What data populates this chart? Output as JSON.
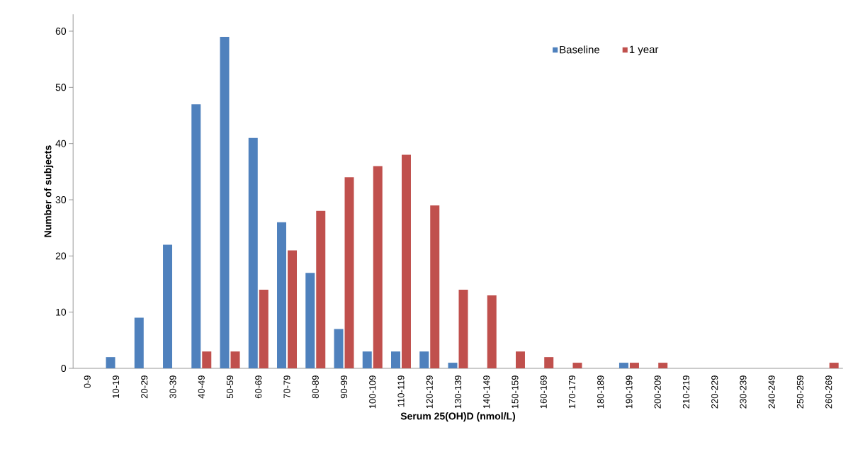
{
  "chart_data": {
    "type": "bar",
    "xlabel": "Serum 25(OH)D (nmol/L)",
    "ylabel": "Number of subjects",
    "categories": [
      "0-9",
      "10-19",
      "20-29",
      "30-39",
      "40-49",
      "50-59",
      "60-69",
      "70-79",
      "80-89",
      "90-99",
      "100-109",
      "110-119",
      "120-129",
      "130-139",
      "140-149",
      "150-159",
      "160-169",
      "170-179",
      "180-189",
      "190-199",
      "200-209",
      "210-219",
      "220-229",
      "230-239",
      "240-249",
      "250-259",
      "260-269"
    ],
    "series": [
      {
        "name": "Baseline",
        "color": "#4f81bd",
        "values": [
          0,
          2,
          9,
          22,
          47,
          59,
          41,
          26,
          17,
          7,
          3,
          3,
          3,
          1,
          0,
          0,
          0,
          0,
          0,
          1,
          0,
          0,
          0,
          0,
          0,
          0,
          0
        ]
      },
      {
        "name": "1 year",
        "color": "#c0504d",
        "values": [
          0,
          0,
          0,
          0,
          3,
          3,
          14,
          21,
          28,
          34,
          36,
          38,
          29,
          14,
          13,
          3,
          2,
          1,
          0,
          1,
          1,
          0,
          0,
          0,
          0,
          0,
          1
        ]
      }
    ],
    "ylim": [
      0,
      63
    ],
    "yticks": [
      0,
      10,
      20,
      30,
      40,
      50,
      60
    ],
    "grid": false,
    "legend": "top right"
  }
}
